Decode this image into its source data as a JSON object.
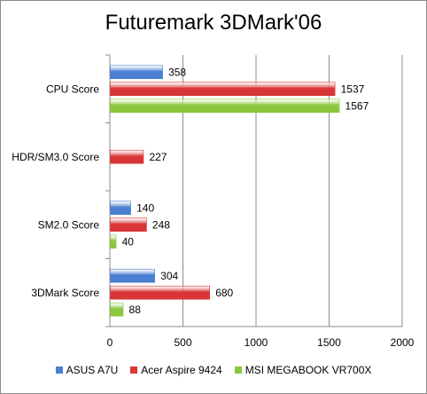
{
  "chart_data": {
    "type": "bar",
    "orientation": "horizontal",
    "title": "Futuremark 3DMark'06",
    "categories": [
      "CPU Score",
      "HDR/SM3.0 Score",
      "SM2.0 Score",
      "3DMark Score"
    ],
    "series": [
      {
        "name": "ASUS A7U",
        "color": "#4a7fd1",
        "values": [
          358,
          null,
          140,
          304
        ]
      },
      {
        "name": "Acer Aspire 9424",
        "color": "#d93636",
        "values": [
          1537,
          227,
          248,
          680
        ]
      },
      {
        "name": "MSI MEGABOOK VR700X",
        "color": "#8cc63e",
        "values": [
          1567,
          null,
          40,
          88
        ]
      }
    ],
    "xlim": [
      0,
      2000
    ],
    "xticks": [
      0,
      500,
      1000,
      1500,
      2000
    ],
    "grid": true,
    "legend_position": "bottom"
  }
}
